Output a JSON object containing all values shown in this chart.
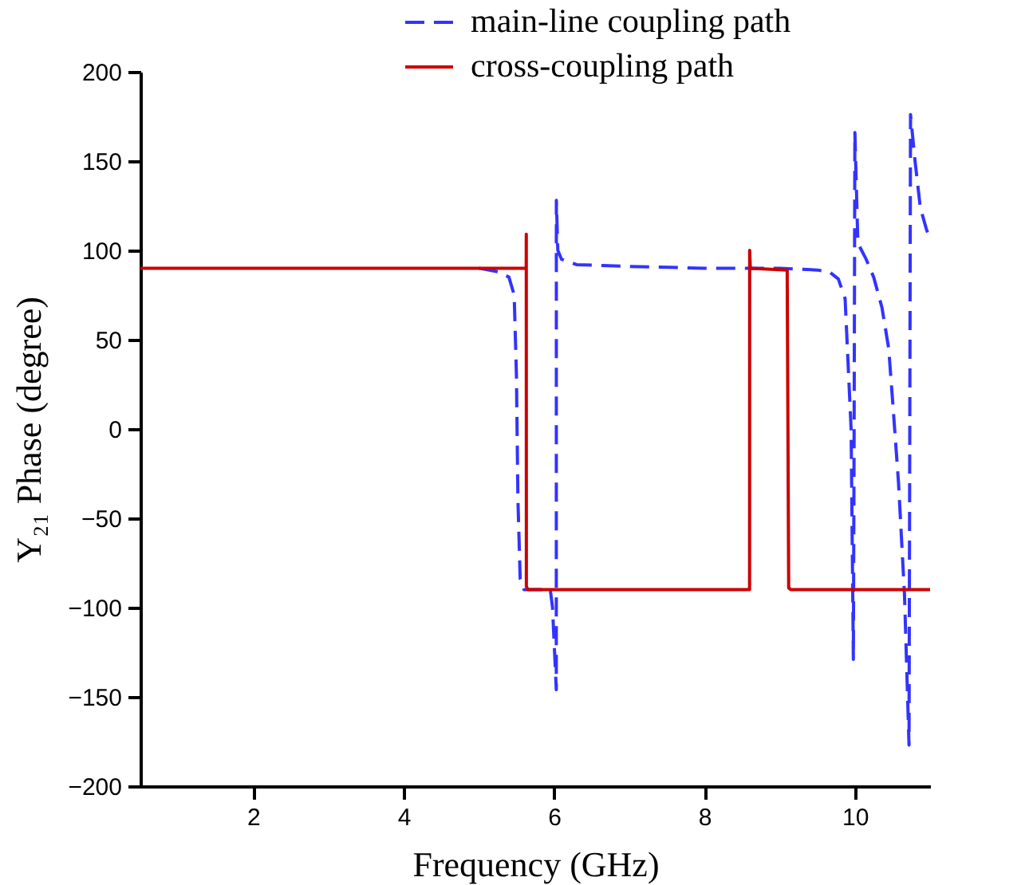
{
  "chart_data": {
    "type": "line",
    "xlabel": "Frequency (GHz)",
    "ylabel": "Y₂₁ Phase (degree)",
    "xlim": [
      0.5,
      11
    ],
    "ylim": [
      -200,
      200
    ],
    "xticks": [
      2,
      4,
      6,
      8,
      10
    ],
    "yticks": [
      -200,
      -150,
      -100,
      -50,
      0,
      50,
      100,
      150,
      200
    ],
    "grid": false,
    "legend": "top right",
    "marker": "none",
    "series": [
      {
        "name": "main-line coupling path",
        "color": "#3333ff",
        "line_style": "dashed",
        "x": [
          5,
          5.26,
          5.4,
          5.47,
          5.5,
          5.52,
          5.55,
          5.6,
          5.8,
          5.95,
          5.98,
          6.03,
          6.031,
          6.05,
          6.1,
          6.3,
          7,
          8,
          9,
          9.5,
          9.66,
          9.78,
          9.87,
          9.95,
          9.98,
          9.99,
          10.0,
          10.04,
          10.15,
          10.25,
          10.36,
          10.45,
          10.51,
          10.58,
          10.66,
          10.72,
          10.74,
          10.8,
          10.87,
          10.95,
          11
        ],
        "values": [
          90,
          88,
          85,
          75,
          30,
          -40,
          -84,
          -90,
          -90,
          -90,
          -100,
          -146,
          128,
          100,
          95,
          92,
          91,
          90,
          90,
          89,
          88,
          84,
          73,
          0,
          -129,
          0,
          166,
          104,
          95,
          85,
          68,
          45,
          11,
          -30,
          -93,
          -177,
          176,
          150,
          124,
          112,
          106
        ]
      },
      {
        "name": "cross-coupling path",
        "color": "#cc0000",
        "line_style": "solid",
        "x": [
          0.5,
          5.6,
          5.63,
          5.631,
          5.632,
          5.65,
          8.59,
          8.6,
          8.601,
          8.61,
          9.1,
          9.12,
          9.15,
          11
        ],
        "values": [
          90,
          90,
          90,
          109,
          -88,
          -90,
          -90,
          -90,
          100,
          90,
          89,
          -89,
          -90,
          -90
        ]
      }
    ]
  }
}
